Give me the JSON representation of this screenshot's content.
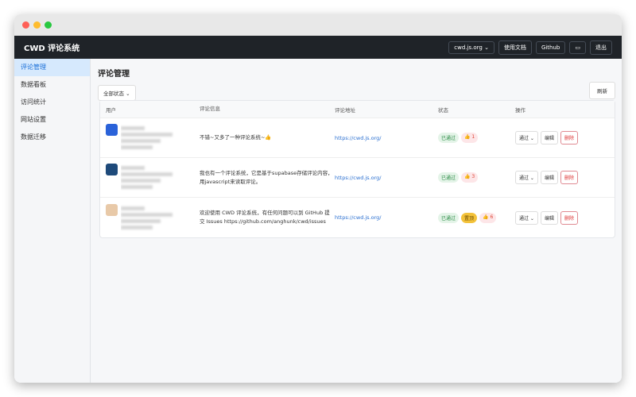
{
  "app": {
    "title": "CWD 评论系统"
  },
  "header": {
    "site_select": "cwd.js.org",
    "docs": "使用文档",
    "github": "Github",
    "theme_icon": "monitor-icon",
    "logout": "退出"
  },
  "sidebar": {
    "items": [
      {
        "label": "评论管理",
        "active": true
      },
      {
        "label": "数据看板"
      },
      {
        "label": "访问统计"
      },
      {
        "label": "网站设置"
      },
      {
        "label": "数据迁移"
      }
    ]
  },
  "main": {
    "title": "评论管理",
    "filter": "全部状态",
    "refresh": "刷新",
    "columns": [
      "用户",
      "评论信息",
      "评论地址",
      "状态",
      "操作"
    ],
    "rows": [
      {
        "comment": "不错~又多了一种评论系统~👍",
        "url": "https://cwd.js.org/",
        "status": "已通过",
        "pinned": "",
        "likes": "1",
        "action": "通过",
        "edit": "编辑",
        "delete": "删除"
      },
      {
        "comment": "我也有一个评论系统，它是基于supabase存储评论内容，用javascript来读取评论。",
        "url": "https://cwd.js.org/",
        "status": "已通过",
        "pinned": "",
        "likes": "3",
        "action": "通过",
        "edit": "编辑",
        "delete": "删除"
      },
      {
        "comment": "欢迎使用 CWD 评论系统，有任何问题可以到 GitHub 提交 Issues https://github.com/anghunk/cwd/issues",
        "url": "https://cwd.js.org/",
        "status": "已通过",
        "pinned": "置顶",
        "likes": "6",
        "action": "通过",
        "edit": "编辑",
        "delete": "删除"
      }
    ]
  }
}
